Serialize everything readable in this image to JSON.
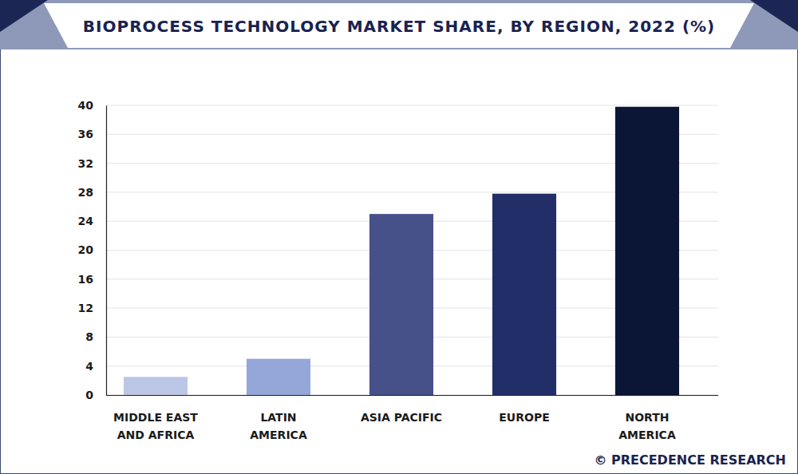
{
  "chart_data": {
    "type": "bar",
    "title": "BIOPROCESS TECHNOLOGY MARKET SHARE, BY REGION, 2022 (%)",
    "source": "© PRECEDENCE RESEARCH",
    "categories": [
      "MIDDLE EAST AND AFRICA",
      "LATIN AMERICA",
      "ASIA PACIFIC",
      "EUROPE",
      "NORTH AMERICA"
    ],
    "values": [
      2.5,
      5.0,
      25.0,
      27.8,
      39.8
    ],
    "colors": [
      "#bcc6e6",
      "#94a7d8",
      "#465189",
      "#222e67",
      "#0b1636"
    ],
    "ylim": [
      0,
      40
    ],
    "yticks": [
      0,
      4,
      8,
      12,
      16,
      20,
      24,
      28,
      32,
      36,
      40
    ],
    "grid": true
  }
}
